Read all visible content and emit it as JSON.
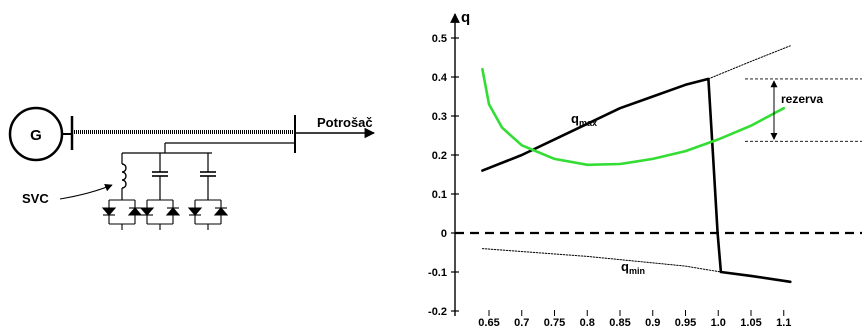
{
  "diagram": {
    "generator_label": "G",
    "load_label": "Potrošač",
    "svc_label": "SVC"
  },
  "chart_data": {
    "type": "line",
    "ylabel": "q",
    "xlim": [
      0.6,
      1.14
    ],
    "ylim": [
      -0.22,
      0.55
    ],
    "x_ticks": [
      "0.65",
      "0.7",
      "0.75",
      "0.8",
      "0.85",
      "0.9",
      "0.95",
      "1.0",
      "1.05",
      "1.1"
    ],
    "y_ticks": [
      "0.5",
      "0.4",
      "0.3",
      "0.2",
      "0.1",
      "0",
      "-0.1",
      "-0.2"
    ],
    "series": [
      {
        "name": "q_max",
        "label_main": "q",
        "label_sub": "max",
        "color": "#000000",
        "points": [
          [
            0.64,
            0.16
          ],
          [
            0.7,
            0.2
          ],
          [
            0.75,
            0.24
          ],
          [
            0.8,
            0.28
          ],
          [
            0.85,
            0.32
          ],
          [
            0.9,
            0.35
          ],
          [
            0.95,
            0.38
          ],
          [
            0.985,
            0.395
          ],
          [
            0.992,
            0.2
          ],
          [
            0.999,
            0.0
          ],
          [
            1.004,
            -0.1
          ],
          [
            1.05,
            -0.11
          ],
          [
            1.11,
            -0.125
          ]
        ]
      },
      {
        "name": "green",
        "color": "#33dd33",
        "points": [
          [
            0.64,
            0.42
          ],
          [
            0.65,
            0.33
          ],
          [
            0.67,
            0.27
          ],
          [
            0.7,
            0.225
          ],
          [
            0.75,
            0.19
          ],
          [
            0.8,
            0.175
          ],
          [
            0.85,
            0.177
          ],
          [
            0.9,
            0.19
          ],
          [
            0.95,
            0.21
          ],
          [
            1.0,
            0.24
          ],
          [
            1.05,
            0.275
          ],
          [
            1.1,
            0.32
          ]
        ]
      },
      {
        "name": "q_min",
        "label_main": "q",
        "label_sub": "min",
        "color": "#000000",
        "style": "dotted",
        "points": [
          [
            0.64,
            -0.04
          ],
          [
            0.8,
            -0.06
          ],
          [
            0.95,
            -0.085
          ],
          [
            1.004,
            -0.1
          ]
        ]
      },
      {
        "name": "q_max_extension",
        "color": "#000000",
        "style": "dotted",
        "points": [
          [
            0.985,
            0.395
          ],
          [
            1.05,
            0.44
          ],
          [
            1.11,
            0.48
          ]
        ]
      }
    ],
    "zero_line": 0,
    "annotations": {
      "rezerva_label": "rezerva",
      "rezerva_top": 0.395,
      "rezerva_bottom": 0.235
    }
  }
}
